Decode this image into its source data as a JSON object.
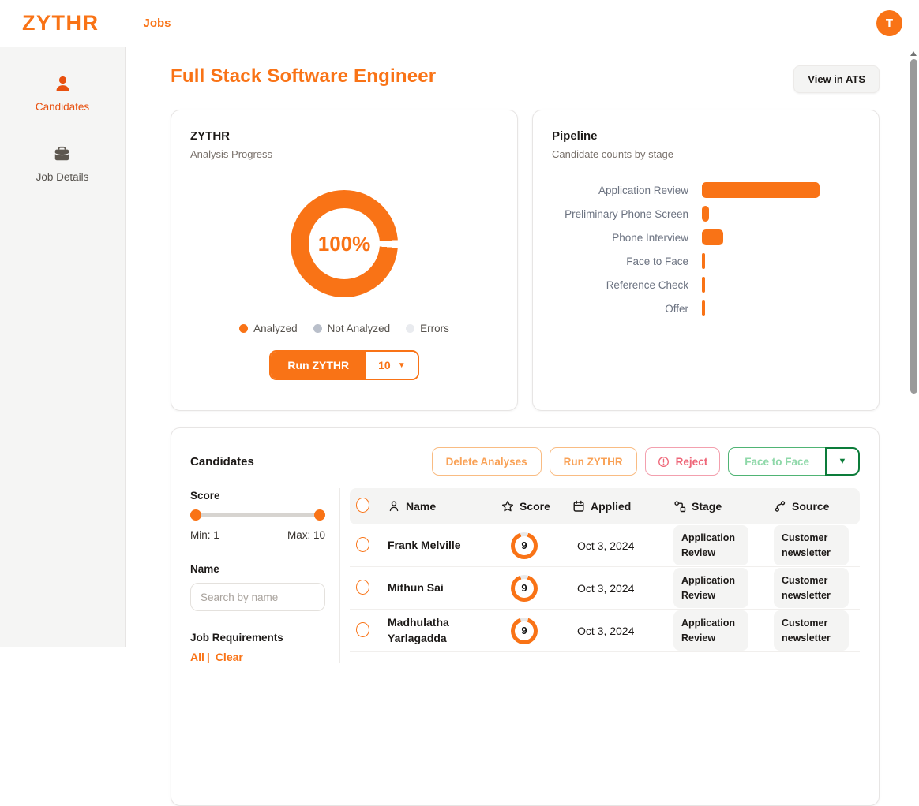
{
  "header": {
    "logo_text": "ZYTHR",
    "nav_jobs_label": "Jobs",
    "avatar_initial": "T"
  },
  "sidebar": {
    "items": [
      {
        "label": "Candidates",
        "icon": "person-icon",
        "active": true
      },
      {
        "label": "Job Details",
        "icon": "briefcase-icon",
        "active": false
      }
    ]
  },
  "page": {
    "title": "Full Stack Software Engineer",
    "view_in_ats_label": "View in ATS"
  },
  "analysis_card": {
    "title": "ZYTHR",
    "subtitle": "Analysis Progress",
    "progress_label": "100%",
    "legend": [
      {
        "label": "Analyzed",
        "color": "#f97316"
      },
      {
        "label": "Not Analyzed",
        "color": "#b9bfca"
      },
      {
        "label": "Errors",
        "color": "#e9ebef"
      }
    ],
    "run_button_label": "Run ZYTHR",
    "run_count_value": "10"
  },
  "pipeline_card": {
    "title": "Pipeline",
    "subtitle": "Candidate counts by stage"
  },
  "chart_data": [
    {
      "type": "pie",
      "title": "Analysis Progress",
      "labels": [
        "Analyzed",
        "Not Analyzed",
        "Errors"
      ],
      "values": [
        100,
        0,
        0
      ],
      "unit": "percent",
      "center_label": "100%",
      "colors": [
        "#f97316",
        "#b9bfca",
        "#e9ebef"
      ],
      "legend_position": "bottom"
    },
    {
      "type": "bar",
      "orientation": "horizontal",
      "title": "Pipeline",
      "categories": [
        "Application Review",
        "Preliminary Phone Screen",
        "Phone Interview",
        "Face to Face",
        "Reference Check",
        "Offer"
      ],
      "values": [
        50,
        3,
        9,
        1,
        1,
        1
      ],
      "color": "#f97316",
      "grid": false,
      "value_labels_shown": false
    }
  ],
  "candidates_card": {
    "title": "Candidates",
    "actions": {
      "delete_analyses_label": "Delete Analyses",
      "run_zythr_label": "Run ZYTHR",
      "reject_label": "Reject",
      "stage_select_label": "Face to Face"
    },
    "filters": {
      "score": {
        "label": "Score",
        "min_label": "Min: 1",
        "max_label": "Max: 10",
        "min": 1,
        "max": 10
      },
      "name": {
        "label": "Name",
        "placeholder": "Search by name"
      },
      "job_requirements": {
        "label": "Job Requirements",
        "all_label": "All",
        "divider": "|",
        "clear_label": "Clear"
      }
    },
    "table": {
      "columns": [
        {
          "label": "Name",
          "icon": "person-icon"
        },
        {
          "label": "Score",
          "icon": "star-icon"
        },
        {
          "label": "Applied",
          "icon": "calendar-icon"
        },
        {
          "label": "Stage",
          "icon": "stage-icon"
        },
        {
          "label": "Source",
          "icon": "source-icon"
        }
      ],
      "rows": [
        {
          "name": "Frank Melville",
          "score": 9,
          "applied": "Oct 3, 2024",
          "stage": "Application Review",
          "source": "Customer newsletter"
        },
        {
          "name": "Mithun Sai",
          "score": 9,
          "applied": "Oct 3, 2024",
          "stage": "Application Review",
          "source": "Customer newsletter"
        },
        {
          "name": "Madhulatha Yarlagadda",
          "score": 9,
          "applied": "Oct 3, 2024",
          "stage": "Application Review",
          "source": "Customer newsletter"
        }
      ]
    }
  },
  "colors": {
    "primary_orange": "#f97316",
    "sidebar_active": "#e8500f",
    "reject_pink": "#ee6678",
    "stage_green_border": "#4fb474",
    "stage_green_text": "#8fd8a9",
    "stage_green_dark": "#0c7c3a",
    "score_ring_gap": "#e9e9e9"
  }
}
